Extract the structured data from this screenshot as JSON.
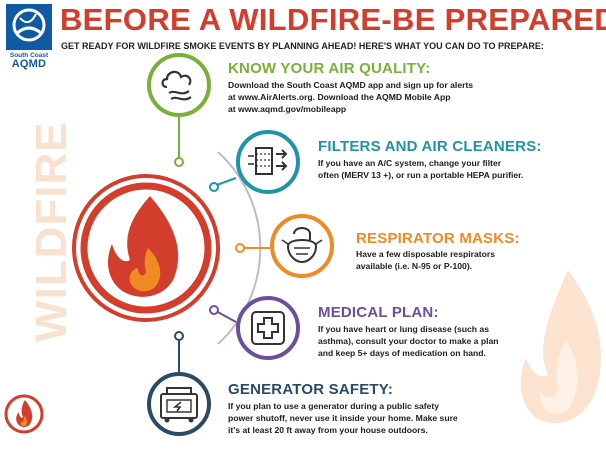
{
  "logo": {
    "line1": "South Coast",
    "line2": "AQMD"
  },
  "title": "BEFORE A WILDFIRE-BE PREPARED",
  "subtitle": "GET READY FOR WILDFIRE SMOKE EVENTS BY PLANNING AHEAD! HERE'S WHAT YOU CAN DO TO PREPARE:",
  "watermark": "WILDFIRE",
  "colors": {
    "red": "#d33d2b",
    "green": "#7ab03a",
    "teal": "#1f94a8",
    "orange": "#f08a24",
    "purple": "#6a4f9c",
    "navy": "#2b4a66"
  },
  "sections": [
    {
      "icon": "cloud-wind-icon",
      "title": "KNOW YOUR AIR QUALITY:",
      "lines": [
        "Download the South Coast AQMD app and sign up for alerts",
        "at www.AirAlerts.org. Download the AQMD Mobile App",
        "at www.aqmd.gov/mobileapp"
      ]
    },
    {
      "icon": "air-filter-icon",
      "title": "FILTERS AND AIR CLEANERS:",
      "lines": [
        "If you have an A/C system, change your filter",
        "often (MERV 13 +), or run a portable HEPA purifier."
      ]
    },
    {
      "icon": "respirator-mask-icon",
      "title": "RESPIRATOR MASKS:",
      "lines": [
        "Have a few disposable respirators",
        "available (i.e. N-95 or P-100)."
      ]
    },
    {
      "icon": "medical-cross-icon",
      "title": "MEDICAL PLAN:",
      "lines": [
        "If you have heart or lung disease (such as",
        "asthma), consult your doctor to make a plan",
        "and keep 5+ days of medication on hand."
      ]
    },
    {
      "icon": "generator-icon",
      "title": "GENERATOR SAFETY:",
      "lines": [
        "If you plan to use a generator during a public safety",
        "power shutoff, never use it inside your home. Make sure",
        "it's at least 20 ft away from your house outdoors."
      ]
    }
  ]
}
